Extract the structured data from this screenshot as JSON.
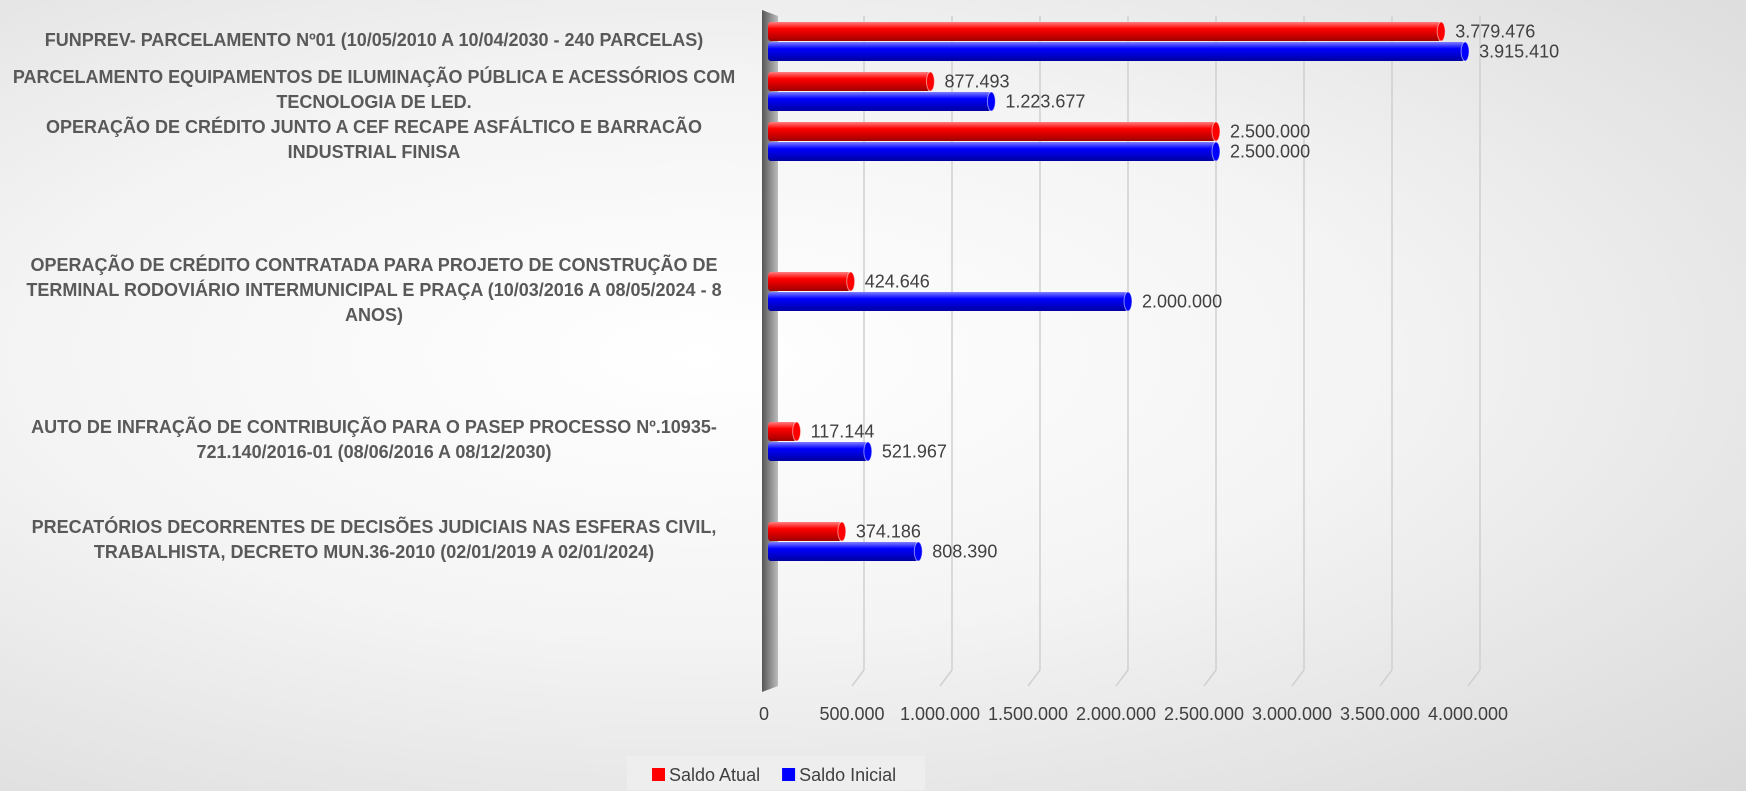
{
  "chart_data": {
    "type": "hbar",
    "categories": [
      "FUNPREV- PARCELAMENTO Nº01 (10/05/2010 A 10/04/2030 - 240 PARCELAS)",
      "PARCELAMENTO EQUIPAMENTOS DE ILUMINAÇÃO PÚBLICA E ACESSÓRIOS COM TECNOLOGIA DE LED.",
      "OPERAÇÃO DE CRÉDITO JUNTO A CEF  RECAPE ASFÁLTICO E BARRACÃO INDUSTRIAL FINISA",
      null,
      null,
      "OPERAÇÃO DE CRÉDITO CONTRATADA PARA PROJETO DE CONSTRUÇÃO DE TERMINAL RODOVIÁRIO INTERMUNICIPAL E PRAÇA (10/03/2016 A 08/05/2024 - 8 ANOS)",
      null,
      null,
      "AUTO DE INFRAÇÃO DE CONTRIBUIÇÃO PARA O PASEP PROCESSO Nº.10935-721.140/2016-01 (08/06/2016 A 08/12/2030)",
      null,
      "PRECATÓRIOS DECORRENTES DE DECISÕES JUDICIAIS NAS ESFERAS CIVIL, TRABALHISTA, DECRETO MUN.36-2010 (02/01/2019 A 02/01/2024)"
    ],
    "series": [
      {
        "name": "Saldo Atual",
        "color": "#ff0000",
        "values": [
          3779476,
          877493,
          2500000,
          null,
          null,
          424646,
          null,
          null,
          117144,
          null,
          374186
        ],
        "value_labels": [
          "3.779.476",
          "877.493",
          "2.500.000",
          null,
          null,
          "424.646",
          null,
          null,
          "117.144",
          null,
          "374.186"
        ]
      },
      {
        "name": "Saldo Inicial",
        "color": "#0000ff",
        "values": [
          3915410,
          1223677,
          2500000,
          null,
          null,
          2000000,
          null,
          null,
          521967,
          null,
          808390
        ],
        "value_labels": [
          "3.915.410",
          "1.223.677",
          "2.500.000",
          null,
          null,
          "2.000.000",
          null,
          null,
          "521.967",
          null,
          "808.390"
        ]
      }
    ],
    "xlim": [
      0,
      4000000
    ],
    "xticks": [
      0,
      {
        "value": 500000,
        "label": "500.000"
      },
      {
        "value": 1000000,
        "label": "1.000.000"
      },
      {
        "value": 1500000,
        "label": "1.500.000"
      },
      {
        "value": 2000000,
        "label": "2.000.000"
      },
      {
        "value": 2500000,
        "label": "2.500.000"
      },
      {
        "value": 3000000,
        "label": "3.000.000"
      },
      {
        "value": 3500000,
        "label": "3.500.000"
      },
      {
        "value": 4000000,
        "label": "4.000.000"
      }
    ],
    "grid": true,
    "legend": "bottom"
  }
}
